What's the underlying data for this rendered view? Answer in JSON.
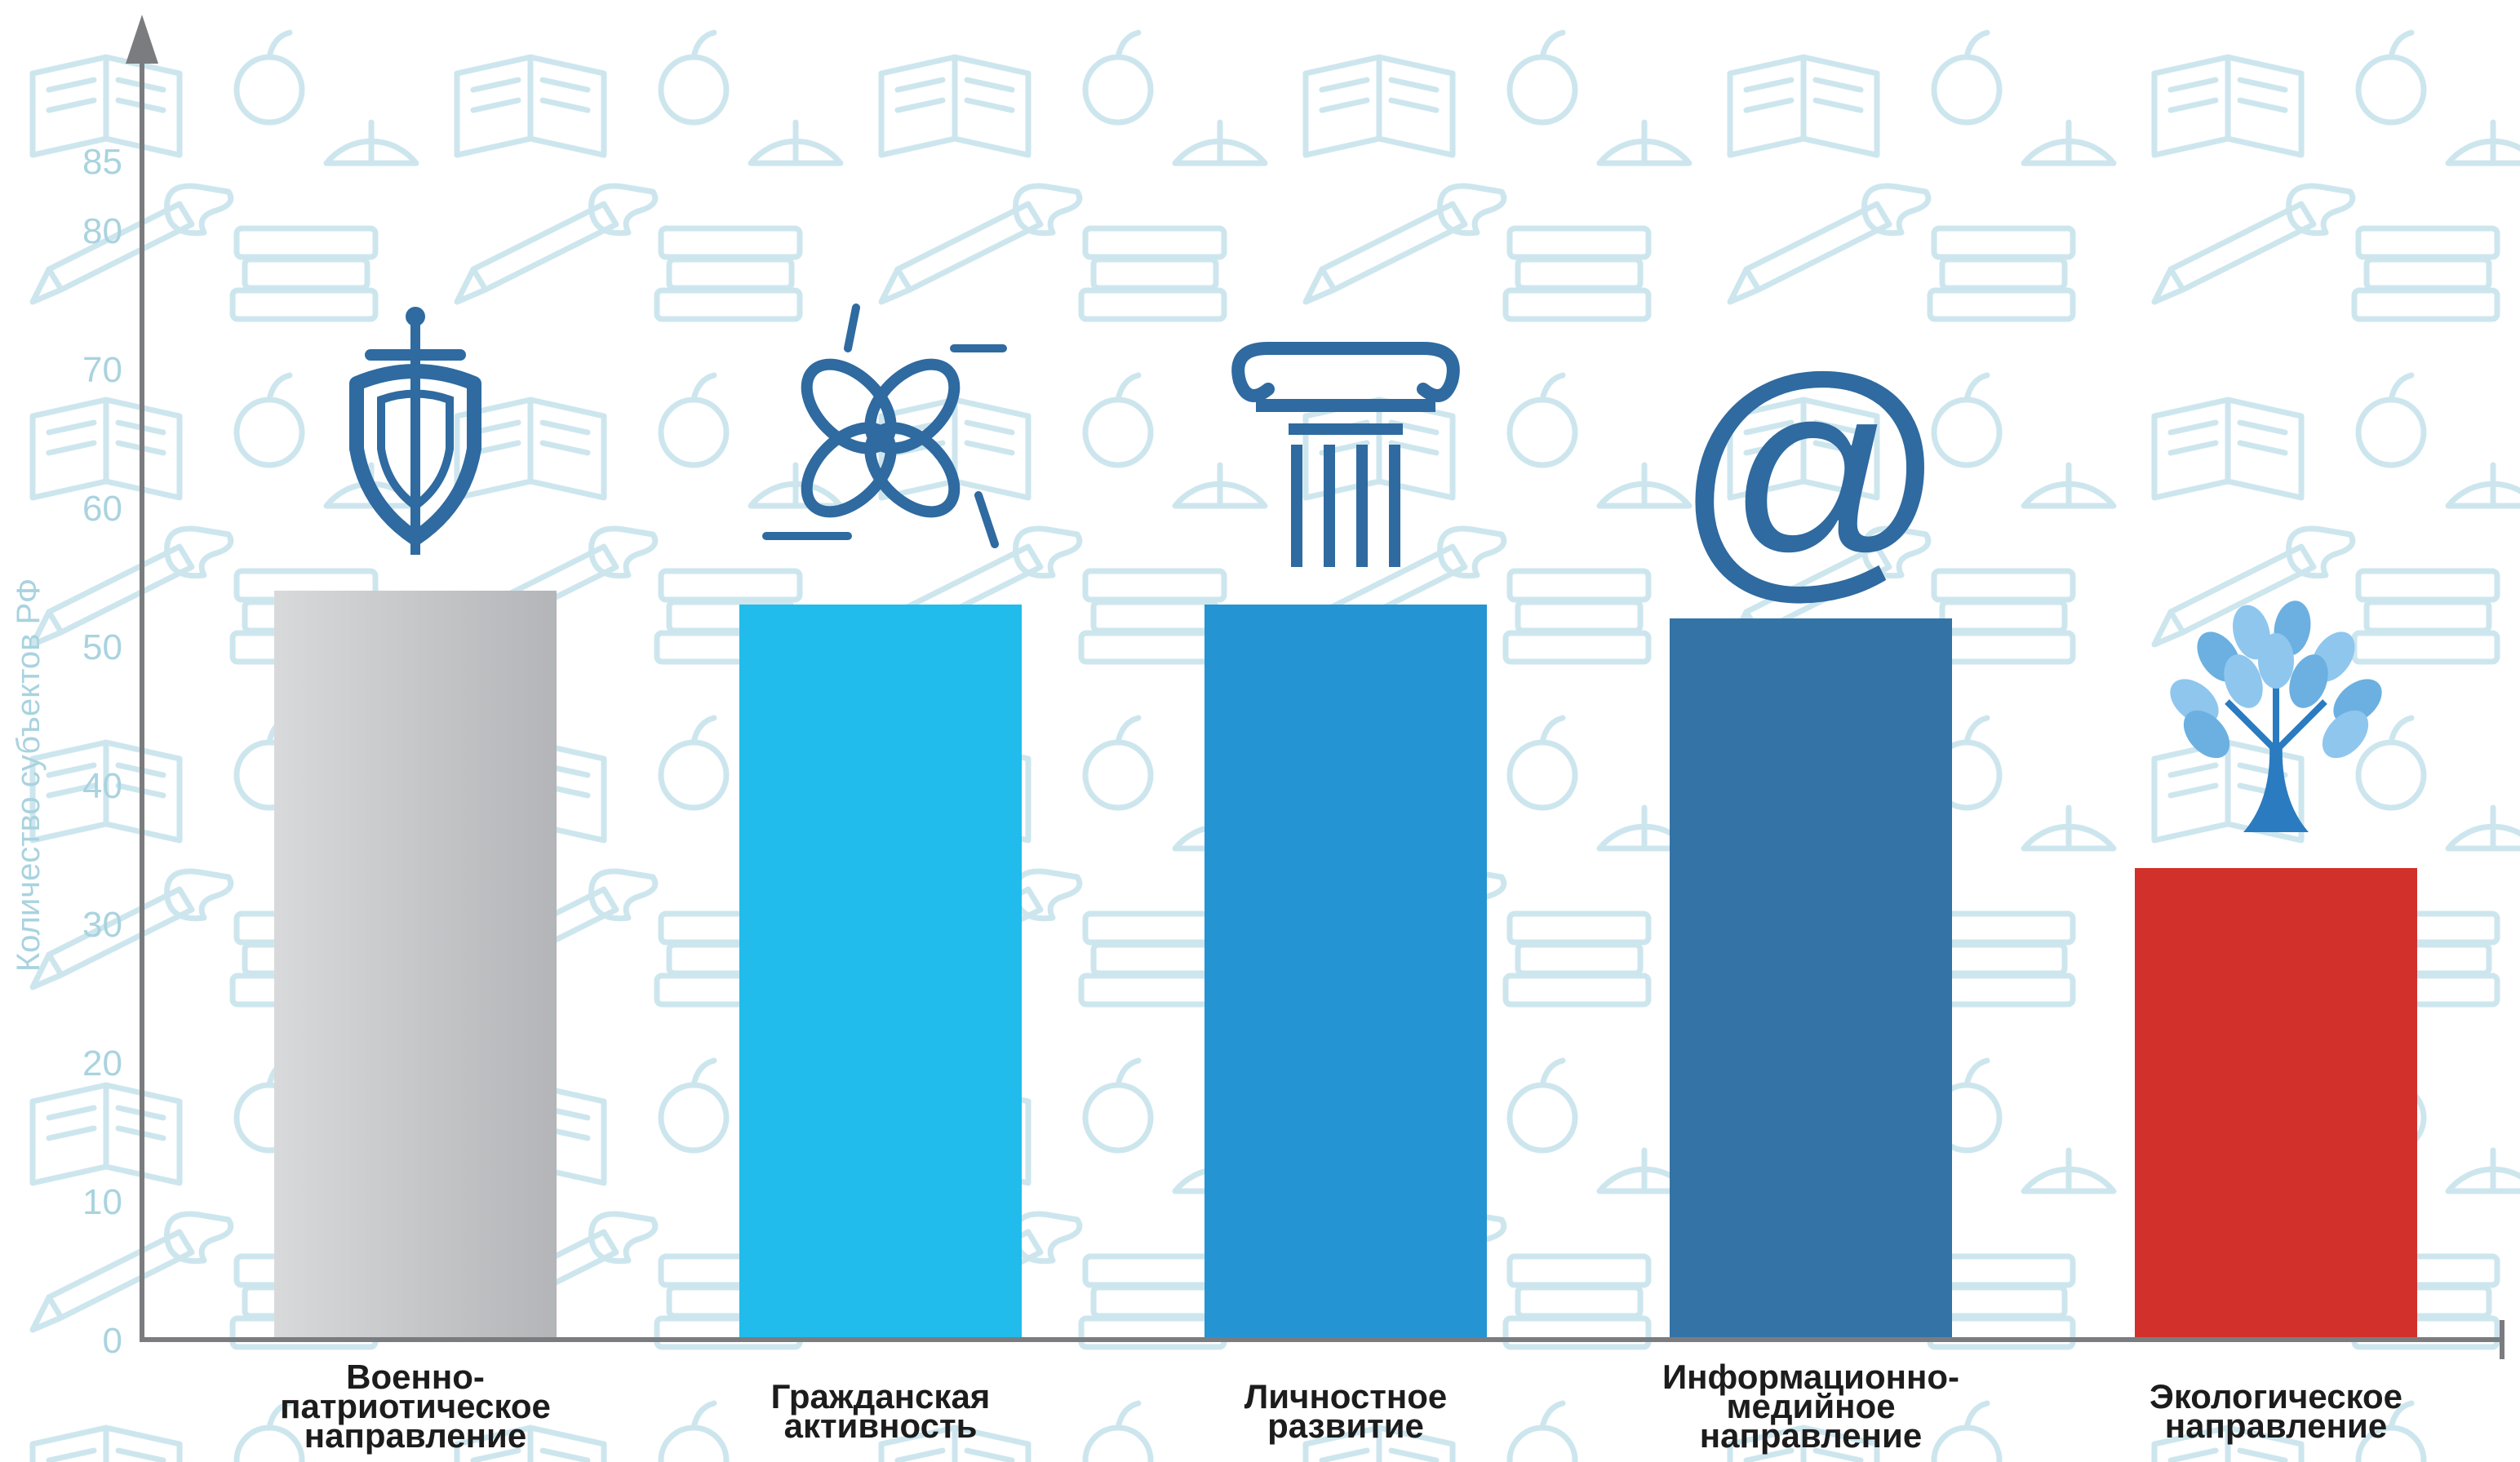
{
  "chart_data": {
    "type": "bar",
    "ylabel": "Количество субъектов РФ",
    "xlabel": "",
    "ylim": [
      0,
      90
    ],
    "yticks": [
      0,
      10,
      20,
      30,
      40,
      50,
      60,
      70,
      80,
      85
    ],
    "grid": false,
    "legend": "none",
    "categories": [
      [
        "Военно-",
        "патриотическое",
        "направление"
      ],
      [
        "Гражданская",
        "активность"
      ],
      [
        "Личностное",
        "развитие"
      ],
      [
        "Информационно-",
        "медийное",
        "направление"
      ],
      [
        "Экологическое",
        "направление"
      ]
    ],
    "values": [
      54,
      53,
      53,
      52,
      34
    ],
    "colors": [
      "#bebfc1",
      "#21bcec",
      "#2594d3",
      "#3373a6",
      "#d1302b"
    ],
    "icons": [
      "shield-sword-icon",
      "joined-hands-icon",
      "column-icon",
      "at-sign-icon",
      "tree-icon"
    ],
    "axis_color": "#7b7c7f",
    "tick_color": "#a9d3df",
    "pattern_color": "#cde6ee"
  }
}
